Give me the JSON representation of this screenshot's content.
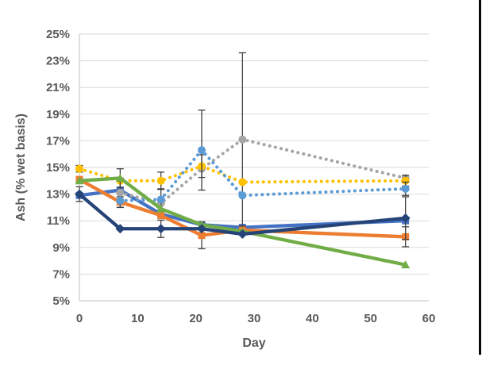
{
  "chart_data": {
    "type": "line",
    "title": "",
    "xlabel": "Day",
    "ylabel": "Ash (% wet basis)",
    "legend": "none",
    "grid": "horizontal",
    "xlim": [
      0,
      60
    ],
    "ylim": [
      5,
      25
    ],
    "x_tick_values": [
      0,
      10,
      20,
      30,
      40,
      50,
      60
    ],
    "x_tick_labels": [
      "0",
      "10",
      "20",
      "30",
      "40",
      "50",
      "60"
    ],
    "y_tick_values": [
      5,
      7,
      9,
      11,
      13,
      15,
      17,
      19,
      21,
      23,
      25
    ],
    "y_tick_labels": [
      "5%",
      "7%",
      "9%",
      "11%",
      "13%",
      "15%",
      "17%",
      "19%",
      "21%",
      "23%",
      "25%"
    ],
    "text_color": "#595959",
    "gridline_color": "#D9D9D9",
    "axis_line_color": "#BFBFBF",
    "error_bar_color": "#404040",
    "series": [
      {
        "name": "royal-blue-solid",
        "color": "#4472C4",
        "style": "solid",
        "marker": "square",
        "x": [
          0,
          7,
          14,
          21,
          28,
          56
        ],
        "y": [
          12.9,
          13.3,
          11.5,
          10.7,
          10.5,
          11.0
        ],
        "err": [
          0,
          0,
          0,
          0,
          0,
          0
        ]
      },
      {
        "name": "orange-solid",
        "color": "#ED7D31",
        "style": "solid",
        "marker": "square",
        "x": [
          0,
          7,
          14,
          21,
          28,
          56
        ],
        "y": [
          14.1,
          12.4,
          11.4,
          9.9,
          10.3,
          9.8
        ],
        "err": [
          0,
          0.4,
          0,
          1.0,
          0,
          0.75
        ]
      },
      {
        "name": "gray-dotted",
        "color": "#A5A5A5",
        "style": "dotted",
        "marker": "circle",
        "x": [
          7,
          14,
          21,
          28,
          56
        ],
        "y": [
          13.1,
          12.3,
          14.9,
          17.1,
          14.2
        ],
        "err": [
          1.1,
          0,
          0,
          6.5,
          0
        ]
      },
      {
        "name": "yellow-dotted",
        "color": "#FFC000",
        "style": "dotted",
        "marker": "circle",
        "x": [
          0,
          7,
          14,
          21,
          28,
          56
        ],
        "y": [
          14.9,
          14.0,
          14.0,
          15.1,
          13.9,
          14.0
        ],
        "err": [
          0.25,
          0,
          0.65,
          0.85,
          0,
          0.4
        ]
      },
      {
        "name": "light-blue-dotted",
        "color": "#5B9BD5",
        "style": "dotted",
        "marker": "circle",
        "x": [
          7,
          14,
          21,
          28,
          56
        ],
        "y": [
          12.5,
          12.6,
          16.3,
          12.9,
          13.4
        ],
        "err": [
          0,
          0.8,
          3.0,
          0,
          0.5
        ]
      },
      {
        "name": "green-solid",
        "color": "#70AD47",
        "style": "solid",
        "marker": "triangle",
        "x": [
          0,
          7,
          14,
          21,
          28,
          56
        ],
        "y": [
          14.0,
          14.2,
          11.9,
          10.7,
          10.2,
          7.7
        ],
        "err": [
          0,
          0.7,
          0,
          0,
          0,
          0
        ]
      },
      {
        "name": "navy-solid",
        "color": "#264478",
        "style": "solid",
        "marker": "diamond",
        "x": [
          0,
          7,
          14,
          21,
          28,
          56
        ],
        "y": [
          13.0,
          10.4,
          10.4,
          10.4,
          10.0,
          11.2
        ],
        "err": [
          0.55,
          0,
          0.65,
          0,
          0,
          1.6
        ]
      }
    ]
  }
}
